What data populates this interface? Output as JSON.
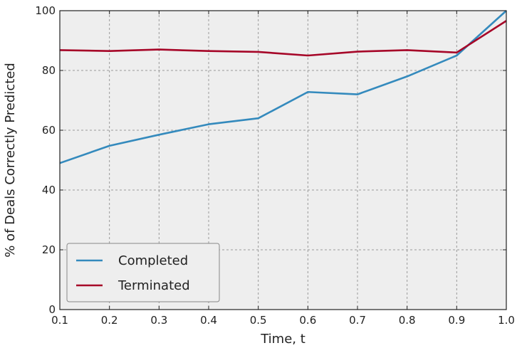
{
  "chart_data": {
    "type": "line",
    "xlabel": "Time, t",
    "ylabel": "% of Deals Correctly Predicted",
    "xlim": [
      0.1,
      1.0
    ],
    "ylim": [
      0,
      100
    ],
    "xticks": [
      "0.1",
      "0.2",
      "0.3",
      "0.4",
      "0.5",
      "0.6",
      "0.7",
      "0.8",
      "0.9",
      "1.0"
    ],
    "yticks": [
      "0",
      "20",
      "40",
      "60",
      "80",
      "100"
    ],
    "grid": true,
    "legend_position": "bottom-left",
    "x": [
      0.1,
      0.2,
      0.3,
      0.4,
      0.5,
      0.6,
      0.7,
      0.8,
      0.9,
      1.0
    ],
    "series": [
      {
        "name": "Completed",
        "color": "#348abd",
        "values": [
          49,
          54.8,
          58.5,
          62,
          64,
          72.8,
          72,
          78,
          85,
          100
        ]
      },
      {
        "name": "Terminated",
        "color": "#a60628",
        "values": [
          86.8,
          86.5,
          87,
          86.5,
          86.2,
          85,
          86.3,
          86.8,
          86,
          96.6
        ]
      }
    ],
    "plot_background": "#eeeeee",
    "grid_color": "#999999"
  }
}
